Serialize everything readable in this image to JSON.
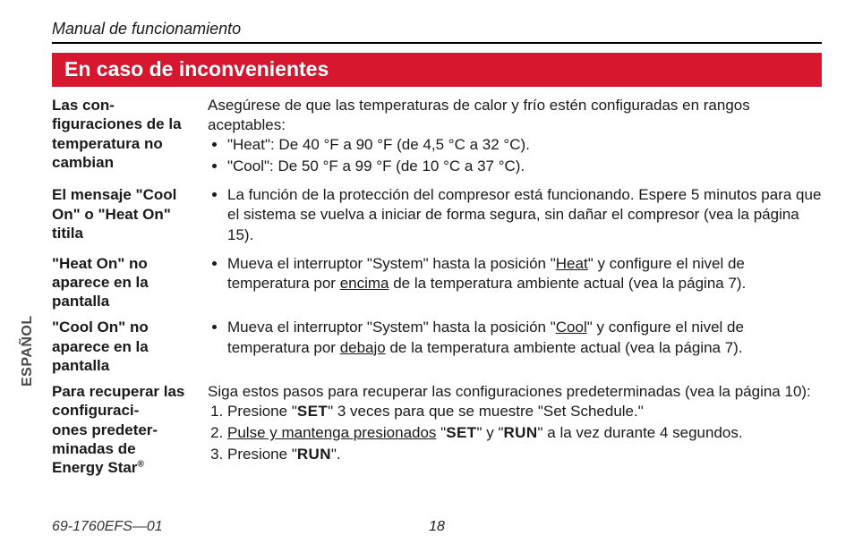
{
  "header": "Manual de funcionamiento",
  "title_bar": "En caso de inconvenientes",
  "side_label": "ESPAÑOL",
  "rows": [
    {
      "left": "Las con-\nfiguraciones de la temperatura no cambian",
      "intro": "Asegúrese de que las temperaturas de calor y frío estén configuradas en rangos aceptables:",
      "bullets": [
        "\"Heat\": De 40 °F a 90 °F (de 4,5 °C a 32 °C).",
        "\"Cool\": De 50 °F a 99 °F (de 10 °C a 37 °C)."
      ]
    },
    {
      "left": "El mensaje \"Cool On\" o \"Heat On\" titila",
      "bullets": [
        "La función de la protección del compresor está funcionando. Espere 5 minutos para que el sistema se vuelva a iniciar de forma segura, sin dañar el compresor (vea la página 15)."
      ]
    },
    {
      "left": "\"Heat On\" no aparece en la pantalla",
      "bullet_html": "Mueva el interruptor \"System\" hasta la posición \"<span class='u'>Heat</span>\" y configure el nivel de temperatura por <span class='u'>encima</span> de la temperatura ambiente actual (vea la página 7)."
    },
    {
      "left": "\"Cool On\" no aparece en la pantalla",
      "bullet_html": "Mueva el interruptor \"System\" hasta la posición \"<span class='u'>Cool</span>\" y configure el nivel de temperatura por <span class='u'>debajo</span> de la temperatura ambiente actual (vea la página 7)."
    },
    {
      "left_html": "Para recuperar las configuraci-\nones predeter-\nminadas de Energy&nbsp;Star<sup>®</sup>",
      "intro": "Siga estos pasos para recuperar las configuraciones predeterminadas (vea la página 10):",
      "steps_html": [
        "Presione \"<span class='sc'>SET</span>\" 3 veces para que se muestre \"Set Schedule.\"",
        "<span class='u'>Pulse y mantenga presionados</span> \"<span class='sc'>SET</span>\" y \"<span class='sc'>RUN</span>\" a la vez durante 4 segundos.",
        "Presione \"<span class='sc'>RUN</span>\"."
      ]
    }
  ],
  "footer": {
    "docnum": "69-1760EFS—01",
    "pagenum": "18"
  }
}
